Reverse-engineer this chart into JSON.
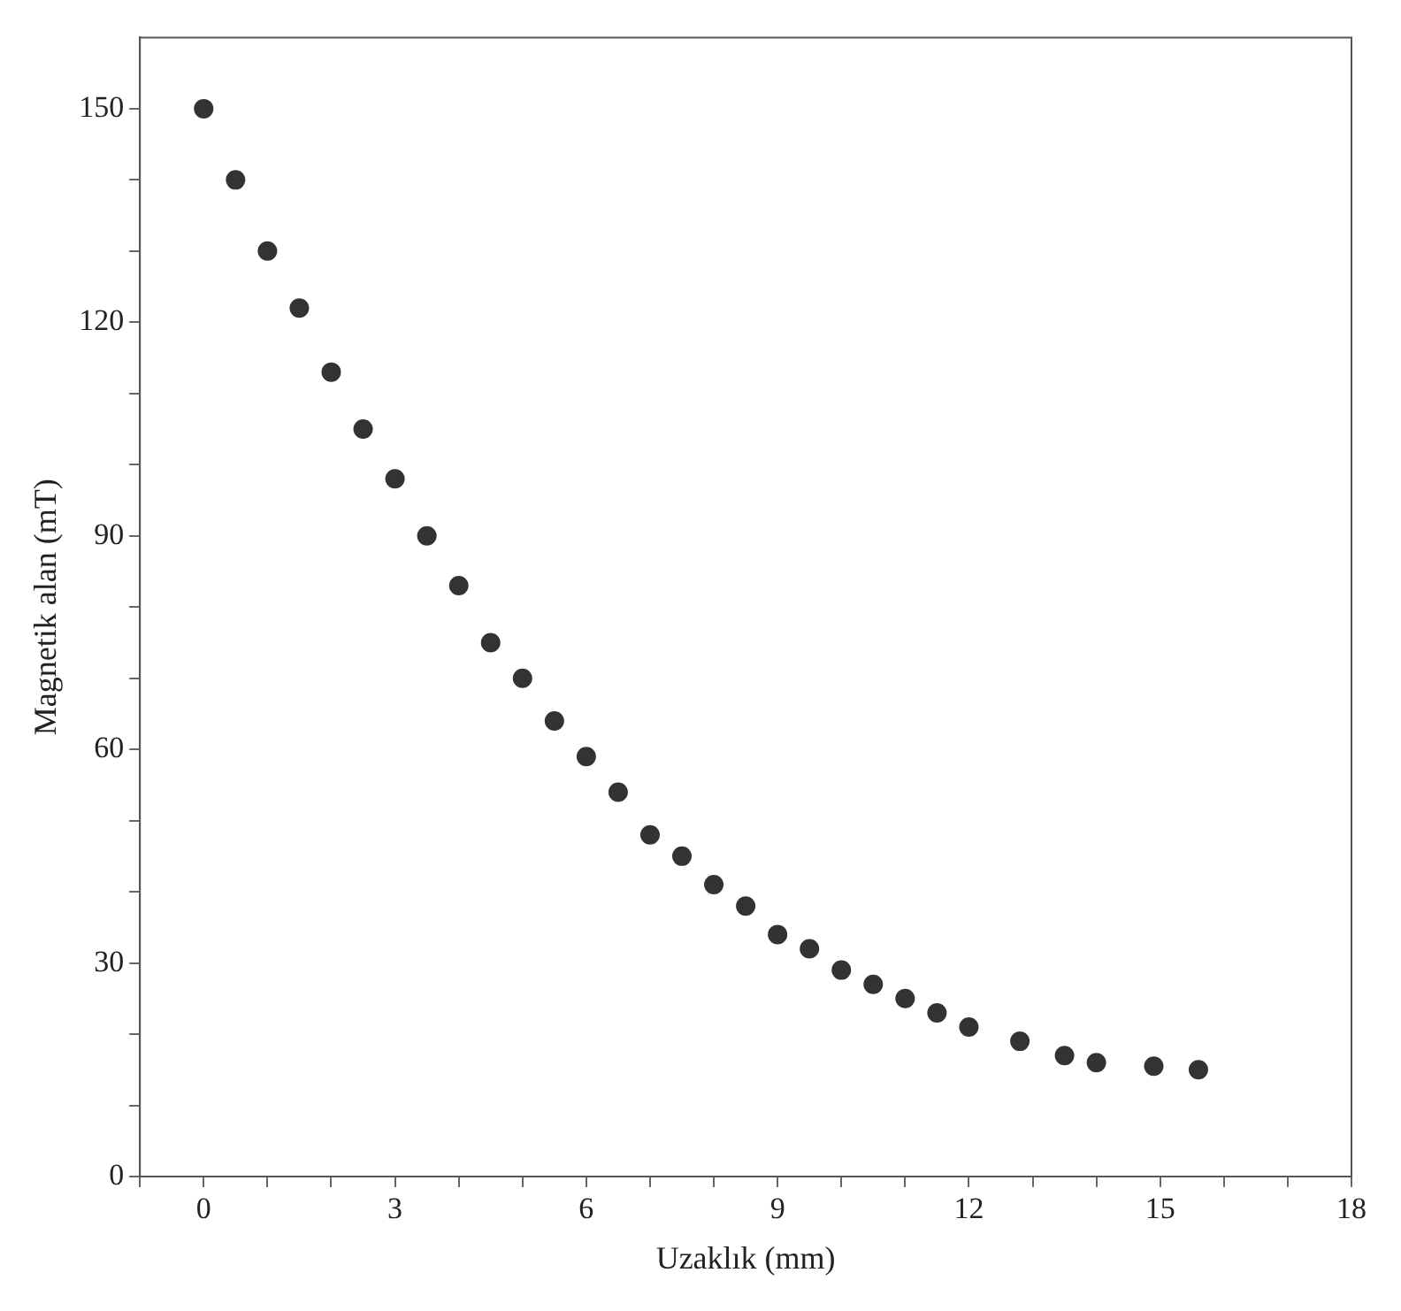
{
  "chart_data": {
    "type": "scatter",
    "xlabel": "Uzaklık (mm)",
    "ylabel": "Magnetik alan (mT)",
    "xlim": [
      -1,
      18
    ],
    "ylim": [
      0,
      160
    ],
    "xticks": [
      {
        "value": -1,
        "label": null
      },
      0,
      {
        "value": 1,
        "label": null
      },
      {
        "value": 2,
        "label": null
      },
      3,
      {
        "value": 4,
        "label": null
      },
      {
        "value": 5,
        "label": null
      },
      6,
      {
        "value": 7,
        "label": null
      },
      {
        "value": 8,
        "label": null
      },
      9,
      {
        "value": 10,
        "label": null
      },
      {
        "value": 11,
        "label": null
      },
      12,
      {
        "value": 13,
        "label": null
      },
      {
        "value": 14,
        "label": null
      },
      15,
      {
        "value": 16,
        "label": null
      },
      {
        "value": 17,
        "label": null
      },
      18
    ],
    "yticks": [
      0,
      {
        "value": 10,
        "label": null
      },
      {
        "value": 20,
        "label": null
      },
      30,
      {
        "value": 40,
        "label": null
      },
      {
        "value": 50,
        "label": null
      },
      60,
      {
        "value": 70,
        "label": null
      },
      {
        "value": 80,
        "label": null
      },
      90,
      {
        "value": 100,
        "label": null
      },
      {
        "value": 110,
        "label": null
      },
      120,
      {
        "value": 130,
        "label": null
      },
      {
        "value": 140,
        "label": null
      },
      150
    ],
    "grid": false,
    "legend": false,
    "marker": "circle",
    "series": [
      {
        "color": "#333333",
        "x": [
          0,
          0.5,
          1,
          1.5,
          2,
          2.5,
          3,
          3.5,
          4,
          4.5,
          5,
          5.5,
          6,
          6.5,
          7,
          7.5,
          8,
          8.5,
          9,
          9.5,
          10,
          10.5,
          11,
          11.5,
          12,
          12.8,
          13.5,
          14,
          14.9,
          15.6
        ],
        "values": [
          150,
          140,
          130,
          122,
          113,
          105,
          98,
          90,
          83,
          75,
          70,
          64,
          59,
          54,
          48,
          45,
          41,
          38,
          34,
          32,
          29,
          27,
          25,
          23,
          21,
          19,
          17,
          16,
          15.5,
          15
        ]
      }
    ]
  }
}
